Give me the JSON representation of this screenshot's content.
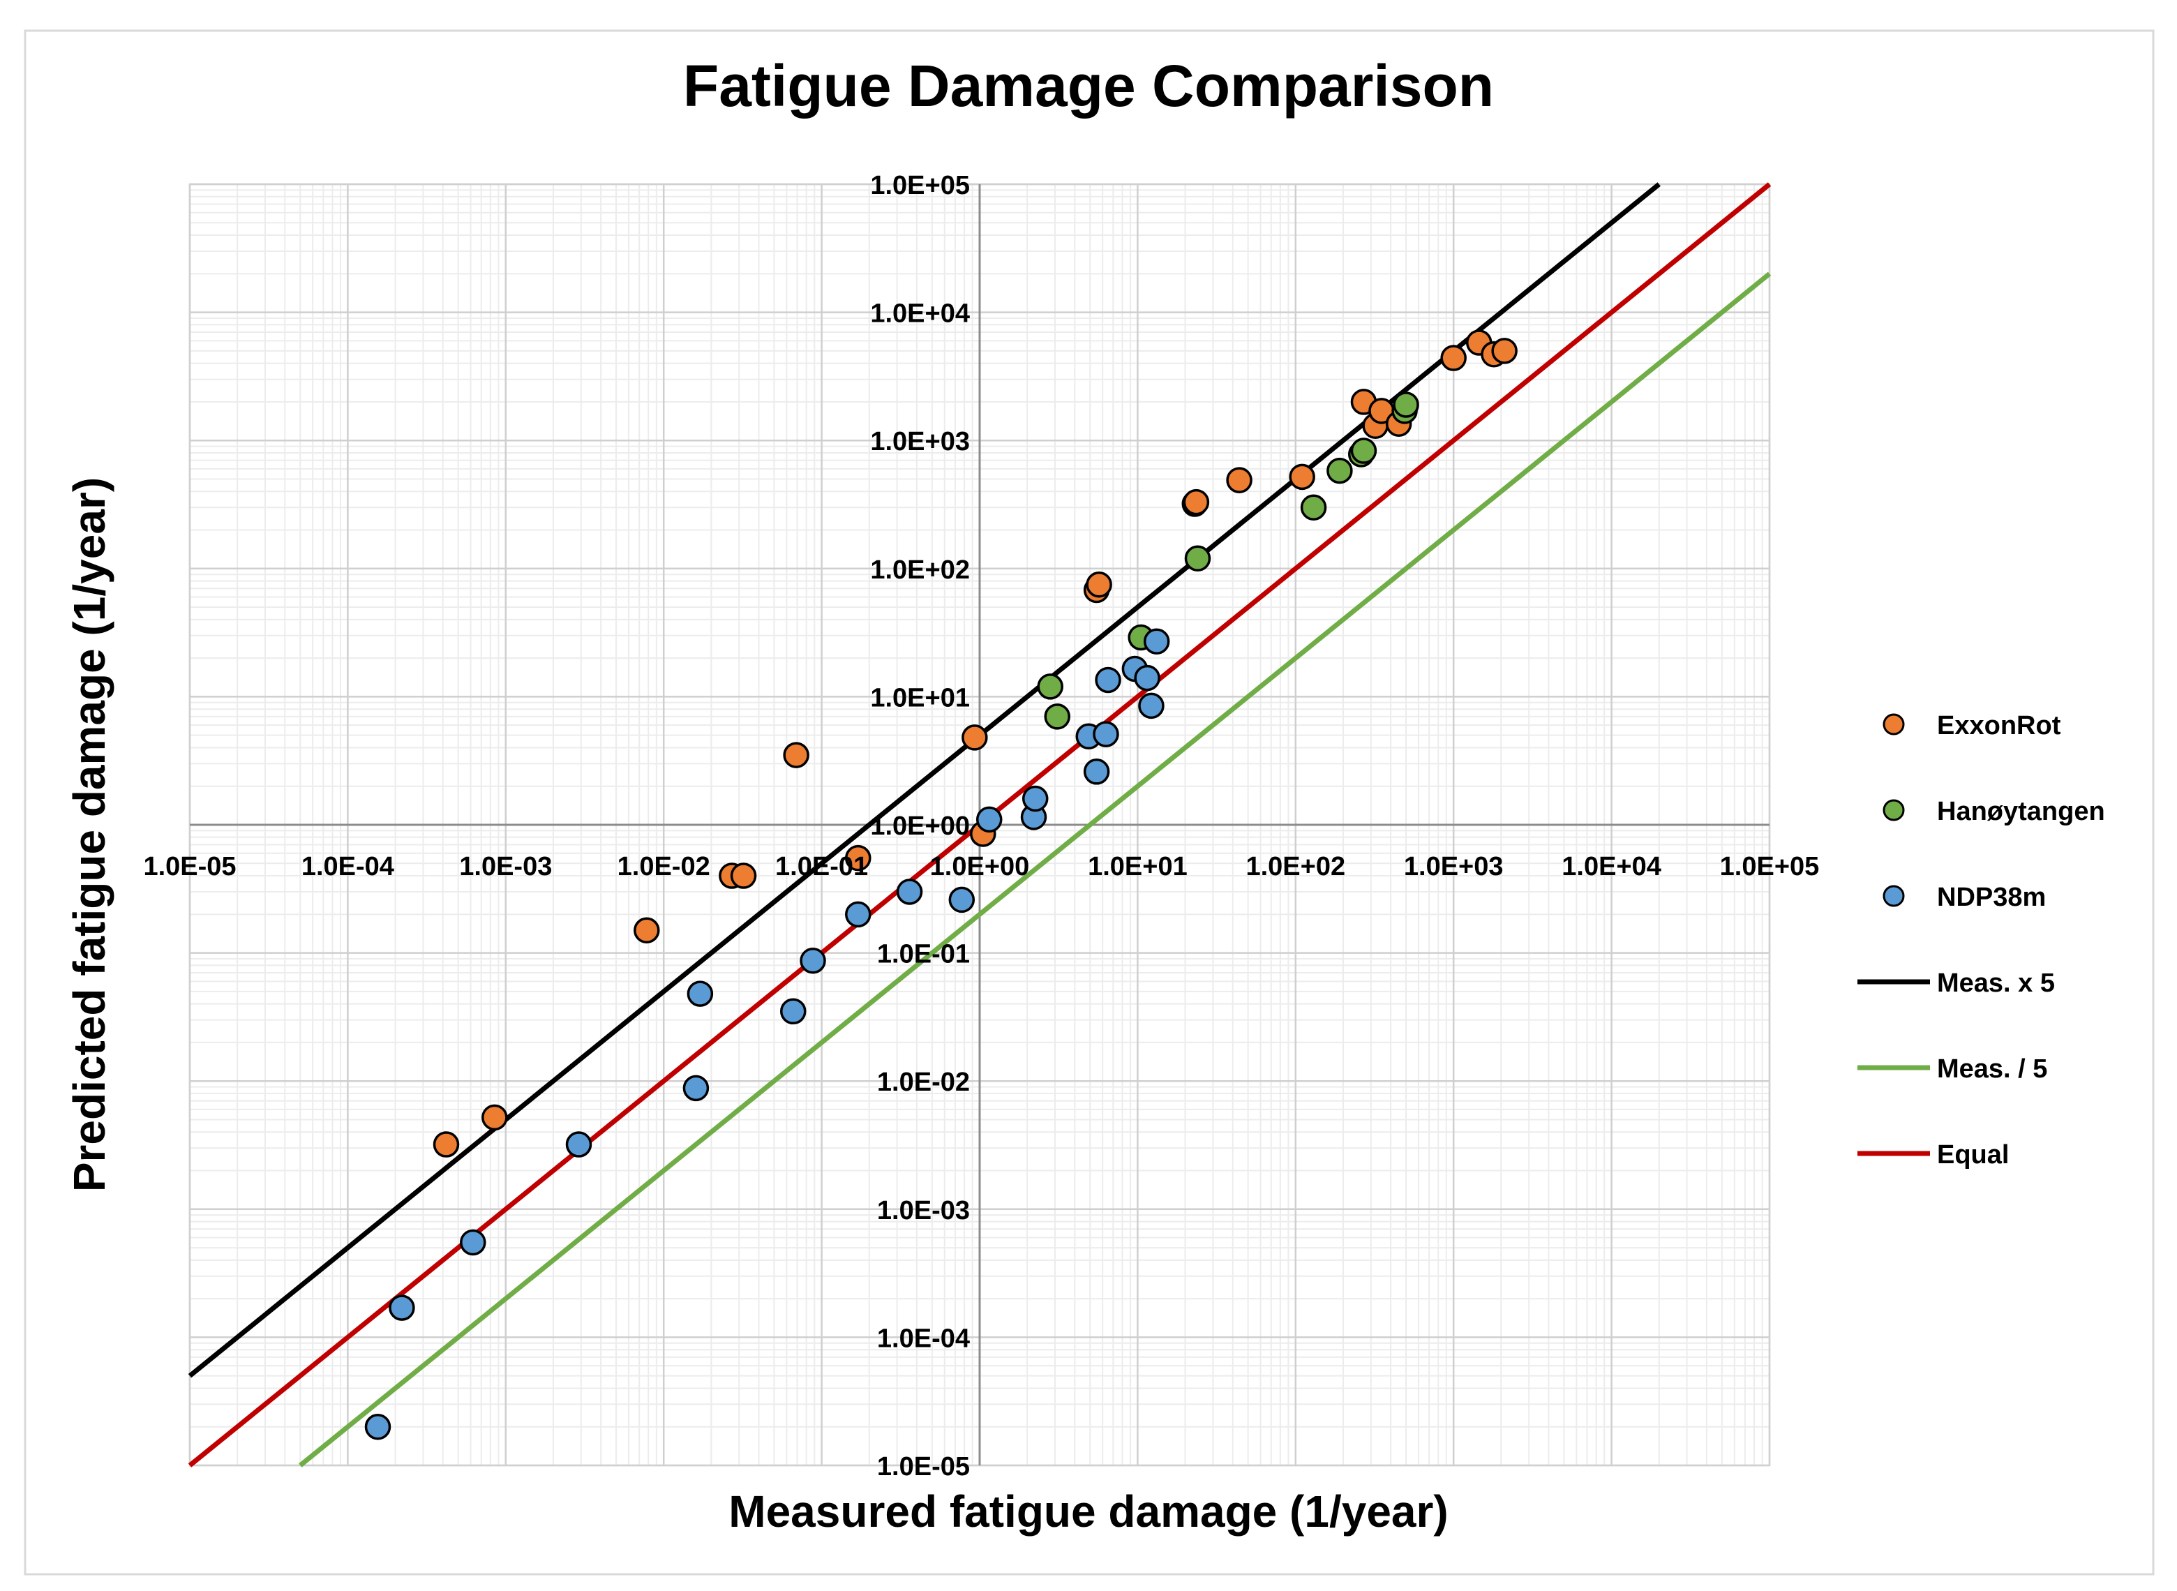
{
  "chart_data": {
    "type": "scatter",
    "title": "Fatigue Damage Comparison",
    "xlabel": "Measured fatigue damage (1/year)",
    "ylabel": "Predicted fatigue damage (1/year)",
    "x_scale": "log",
    "y_scale": "log",
    "xlim": [
      1e-05,
      100000
    ],
    "ylim": [
      1e-05,
      100000
    ],
    "grid": true,
    "legend_position": "right",
    "x_tick_labels": [
      "1.0E-05",
      "1.0E-04",
      "1.0E-03",
      "1.0E-02",
      "1.0E-01",
      "1.0E+00",
      "1.0E+01",
      "1.0E+02",
      "1.0E+03",
      "1.0E+04",
      "1.0E+05"
    ],
    "y_tick_labels": [
      "1.0E-05",
      "1.0E-04",
      "1.0E-03",
      "1.0E-02",
      "1.0E-01",
      "1.0E+00",
      "1.0E+01",
      "1.0E+02",
      "1.0E+03",
      "1.0E+04",
      "1.0E+05"
    ],
    "series": [
      {
        "name": "ExxonRot",
        "kind": "scatter",
        "color": "#ED7D31",
        "points": [
          {
            "x": 0.00042,
            "y": 0.0032
          },
          {
            "x": 0.00085,
            "y": 0.0052
          },
          {
            "x": 0.0078,
            "y": 0.15
          },
          {
            "x": 0.027,
            "y": 0.4
          },
          {
            "x": 0.032,
            "y": 0.4
          },
          {
            "x": 0.069,
            "y": 3.5
          },
          {
            "x": 0.17,
            "y": 0.55
          },
          {
            "x": 0.93,
            "y": 4.8
          },
          {
            "x": 1.05,
            "y": 0.85
          },
          {
            "x": 5.5,
            "y": 68
          },
          {
            "x": 5.7,
            "y": 75
          },
          {
            "x": 23,
            "y": 320
          },
          {
            "x": 23.5,
            "y": 330
          },
          {
            "x": 44,
            "y": 490
          },
          {
            "x": 110,
            "y": 520
          },
          {
            "x": 270,
            "y": 2000
          },
          {
            "x": 320,
            "y": 1300
          },
          {
            "x": 350,
            "y": 1700
          },
          {
            "x": 450,
            "y": 1350
          },
          {
            "x": 1000,
            "y": 4400
          },
          {
            "x": 1450,
            "y": 5800
          },
          {
            "x": 1800,
            "y": 4700
          },
          {
            "x": 2100,
            "y": 5000
          }
        ]
      },
      {
        "name": "Hanøytangen",
        "kind": "scatter",
        "color": "#70AD47",
        "points": [
          {
            "x": 2.8,
            "y": 12
          },
          {
            "x": 3.1,
            "y": 7
          },
          {
            "x": 10.5,
            "y": 29
          },
          {
            "x": 24,
            "y": 120
          },
          {
            "x": 130,
            "y": 300
          },
          {
            "x": 190,
            "y": 580
          },
          {
            "x": 260,
            "y": 780
          },
          {
            "x": 270,
            "y": 830
          },
          {
            "x": 490,
            "y": 1700
          },
          {
            "x": 500,
            "y": 1900
          }
        ]
      },
      {
        "name": "NDP38m",
        "kind": "scatter",
        "color": "#5B9BD5",
        "points": [
          {
            "x": 0.000155,
            "y": 2e-05
          },
          {
            "x": 0.00022,
            "y": 0.00017
          },
          {
            "x": 0.00062,
            "y": 0.00055
          },
          {
            "x": 0.0029,
            "y": 0.0032
          },
          {
            "x": 0.016,
            "y": 0.0088
          },
          {
            "x": 0.017,
            "y": 0.048
          },
          {
            "x": 0.066,
            "y": 0.035
          },
          {
            "x": 0.088,
            "y": 0.087
          },
          {
            "x": 0.17,
            "y": 0.2
          },
          {
            "x": 0.36,
            "y": 0.3
          },
          {
            "x": 0.77,
            "y": 0.26
          },
          {
            "x": 1.15,
            "y": 1.1
          },
          {
            "x": 2.2,
            "y": 1.15
          },
          {
            "x": 2.25,
            "y": 1.6
          },
          {
            "x": 4.9,
            "y": 4.9
          },
          {
            "x": 5.5,
            "y": 2.6
          },
          {
            "x": 6.3,
            "y": 5.1
          },
          {
            "x": 6.5,
            "y": 13.5
          },
          {
            "x": 9.6,
            "y": 16.5
          },
          {
            "x": 11.5,
            "y": 14
          },
          {
            "x": 12.2,
            "y": 8.5
          },
          {
            "x": 13.2,
            "y": 27
          }
        ]
      },
      {
        "name": "Meas. x 5",
        "kind": "line",
        "color": "#000000",
        "factor": 5
      },
      {
        "name": "Meas. / 5",
        "kind": "line",
        "color": "#70AD47",
        "factor": 0.2
      },
      {
        "name": "Equal",
        "kind": "line",
        "color": "#C00000",
        "factor": 1
      }
    ]
  }
}
